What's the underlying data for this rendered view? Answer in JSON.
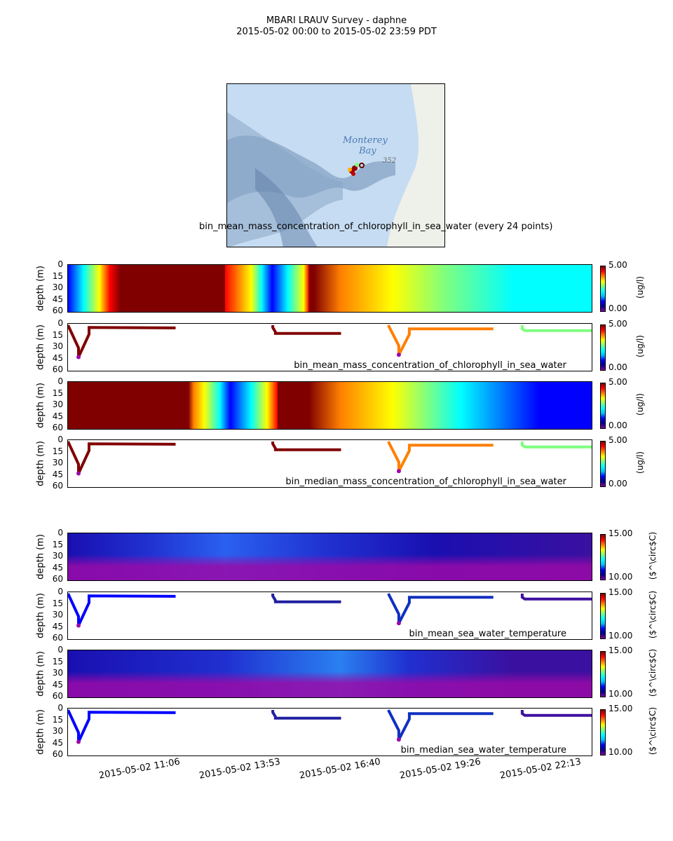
{
  "title": {
    "line1": "MBARI LRAUV Survey - daphne",
    "line2": "2015-05-02 00:00  to  2015-05-02 23:59 PDT"
  },
  "map": {
    "label_bay_1": "Monterey",
    "label_bay_2": "Bay",
    "label_depth": "352",
    "caption": "bin_mean_mass_concentration_of_chlorophyll_in_sea_water (every 24 points)"
  },
  "axes": {
    "ylabel": "depth (m)",
    "yticks": [
      "0",
      "15",
      "30",
      "45",
      "60"
    ],
    "xticks": [
      "2015-05-02 11:06",
      "2015-05-02 13:53",
      "2015-05-02 16:40",
      "2015-05-02 19:26",
      "2015-05-02 22:13"
    ]
  },
  "colors": {
    "chl_background": "#800000",
    "temp_background": "#1a0fb0",
    "purple": "#9b0aa8"
  },
  "chart_data": [
    {
      "type": "heatmap",
      "variable": "chl_mean_section",
      "colorbar": {
        "min": "0.00",
        "max": "5.00",
        "unit": "(ug/l)"
      },
      "ylim": [
        60,
        0
      ]
    },
    {
      "type": "scatter",
      "variable": "chl_mean_profile",
      "label": "bin_mean_mass_concentration_of_chlorophyll_in_sea_water",
      "colorbar": {
        "min": "0.00",
        "max": "5.00",
        "unit": "(ug/l)"
      },
      "ylim": [
        60,
        0
      ]
    },
    {
      "type": "heatmap",
      "variable": "chl_median_section",
      "colorbar": {
        "min": "0.00",
        "max": "5.00",
        "unit": "(ug/l)"
      },
      "ylim": [
        60,
        0
      ]
    },
    {
      "type": "scatter",
      "variable": "chl_median_profile",
      "label": "bin_median_mass_concentration_of_chlorophyll_in_sea_water",
      "colorbar": {
        "min": "0.00",
        "max": "5.00",
        "unit": "(ug/l)"
      },
      "ylim": [
        60,
        0
      ]
    },
    {
      "type": "heatmap",
      "variable": "temp_mean_section",
      "colorbar": {
        "min": "10.00",
        "max": "15.00",
        "unit": "($^\\circ$C)"
      },
      "ylim": [
        60,
        0
      ]
    },
    {
      "type": "scatter",
      "variable": "temp_mean_profile",
      "label": "bin_mean_sea_water_temperature",
      "colorbar": {
        "min": "10.00",
        "max": "15.00",
        "unit": "($^\\circ$C)"
      },
      "ylim": [
        60,
        0
      ]
    },
    {
      "type": "heatmap",
      "variable": "temp_median_section",
      "colorbar": {
        "min": "10.00",
        "max": "15.00",
        "unit": "($^\\circ$C)"
      },
      "ylim": [
        60,
        0
      ]
    },
    {
      "type": "scatter",
      "variable": "temp_median_profile",
      "label": "bin_median_sea_water_temperature",
      "colorbar": {
        "min": "10.00",
        "max": "15.00",
        "unit": "($^\\circ$C)"
      },
      "ylim": [
        60,
        0
      ]
    }
  ]
}
